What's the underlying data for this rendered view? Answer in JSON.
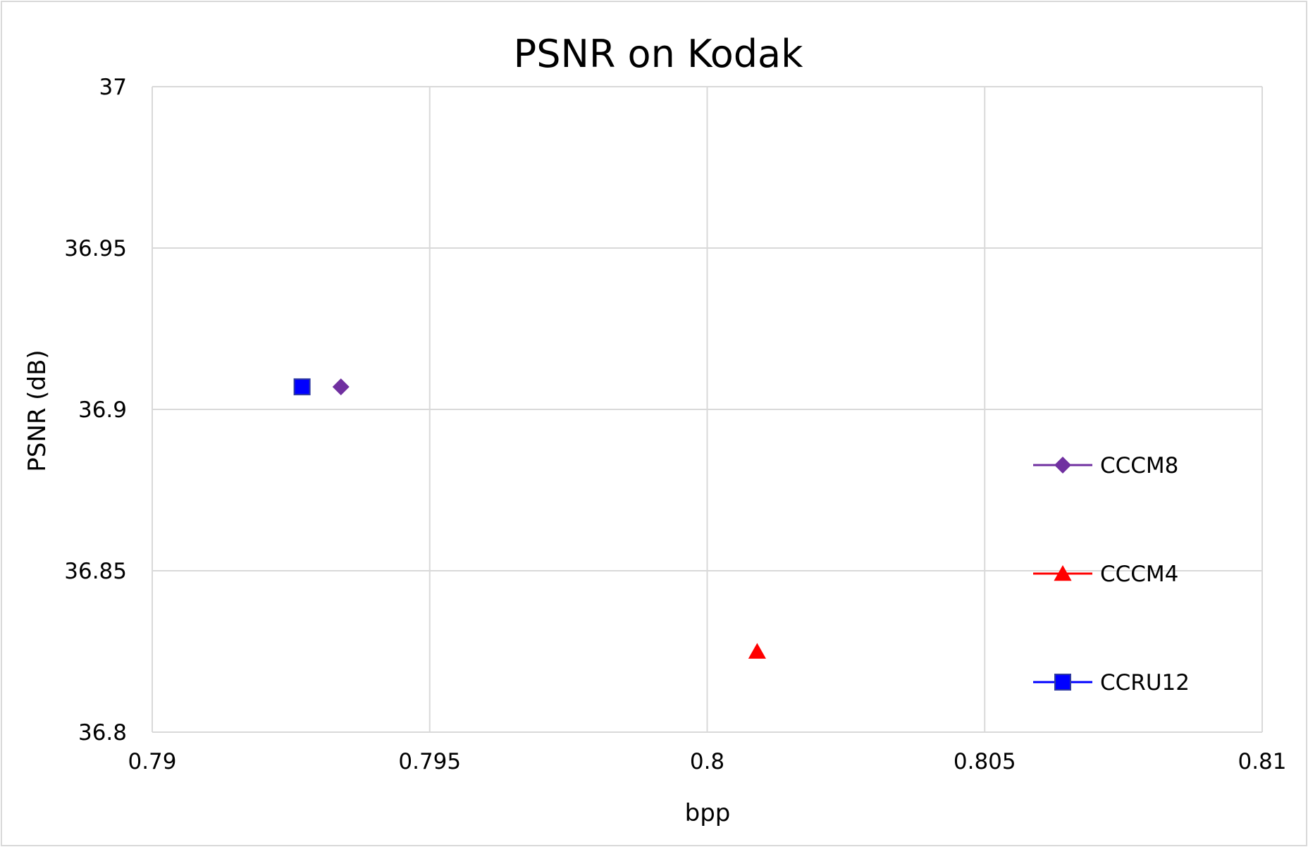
{
  "chart_data": {
    "type": "scatter",
    "title": "PSNR on Kodak",
    "xlabel": "bpp",
    "ylabel": "PSNR (dB)",
    "xlim": [
      0.79,
      0.81
    ],
    "ylim": [
      36.8,
      37
    ],
    "x_ticks": [
      "0.79",
      "0.795",
      "0.8",
      "0.805",
      "0.81"
    ],
    "y_ticks": [
      "36.8",
      "36.85",
      "36.9",
      "36.95",
      "37"
    ],
    "grid": true,
    "legend_position": "right",
    "series": [
      {
        "name": "CCCM8",
        "color": "#7030a0",
        "marker": "diamond",
        "points": [
          {
            "x": 0.7934,
            "y": 36.907
          }
        ]
      },
      {
        "name": "CCCM4",
        "color": "#ff0000",
        "marker": "triangle",
        "points": [
          {
            "x": 0.8009,
            "y": 36.825
          }
        ]
      },
      {
        "name": "CCRU12",
        "color": "#0000ff",
        "marker": "square",
        "points": [
          {
            "x": 0.7927,
            "y": 36.907
          }
        ]
      }
    ]
  }
}
